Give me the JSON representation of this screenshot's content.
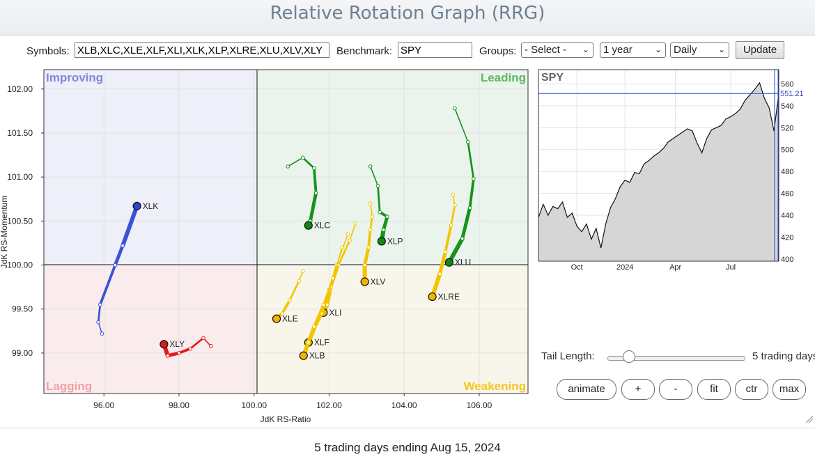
{
  "header": {
    "title": "Relative Rotation Graph (RRG)"
  },
  "controls": {
    "symbols_label": "Symbols:",
    "symbols_value": "XLB,XLC,XLE,XLF,XLI,XLK,XLP,XLRE,XLU,XLV,XLY",
    "benchmark_label": "Benchmark:",
    "benchmark_value": "SPY",
    "groups_label": "Groups:",
    "groups_value": "- Select -",
    "period_value": "1 year",
    "frequency_value": "Daily",
    "update_label": "Update"
  },
  "chart_data": [
    {
      "type": "scatter",
      "title": "",
      "xlabel": "JdK RS-Ratio",
      "ylabel": "JdK RS-Momentum",
      "xlim": [
        94.4,
        107.3
      ],
      "ylim": [
        98.54,
        102.22
      ],
      "x_ticks": [
        96,
        98,
        100,
        102,
        104,
        106
      ],
      "x_tick_labels": [
        "96.00",
        "98.00",
        "100.00",
        "102.00",
        "104.00",
        "106.00"
      ],
      "y_ticks": [
        99,
        99.5,
        100,
        100.5,
        101,
        101.5,
        102
      ],
      "y_tick_labels": [
        "99.00",
        "99.50",
        "100.00",
        "100.50",
        "101.00",
        "101.50",
        "102.00"
      ],
      "center": [
        100,
        100
      ],
      "quadrants": [
        {
          "name": "Improving",
          "color": "#7580d6",
          "fill": "#eeeff9"
        },
        {
          "name": "Leading",
          "color": "#4fae57",
          "fill": "#ebf4ec"
        },
        {
          "name": "Lagging",
          "color": "#f08a90",
          "fill": "#faeced"
        },
        {
          "name": "Weakening",
          "color": "#f0c419",
          "fill": "#f8f6eb"
        }
      ],
      "series": [
        {
          "name": "XLK",
          "color": "#3b54d4",
          "head": "#2f44c0",
          "points": [
            [
              95.95,
              99.22
            ],
            [
              95.85,
              99.35
            ],
            [
              95.9,
              99.55
            ],
            [
              96.3,
              100.0
            ],
            [
              96.5,
              100.22
            ],
            [
              96.88,
              100.67
            ]
          ]
        },
        {
          "name": "XLY",
          "color": "#e41a1c",
          "head": "#d7191c",
          "points": [
            [
              98.85,
              99.08
            ],
            [
              98.65,
              99.17
            ],
            [
              98.3,
              99.05
            ],
            [
              98.0,
              99.0
            ],
            [
              97.7,
              98.97
            ],
            [
              97.6,
              99.1
            ]
          ]
        },
        {
          "name": "XLC",
          "color": "#16931a",
          "head": "#118a15",
          "points": [
            [
              100.9,
              101.12
            ],
            [
              101.3,
              101.22
            ],
            [
              101.6,
              101.1
            ],
            [
              101.65,
              100.82
            ],
            [
              101.5,
              100.5
            ],
            [
              101.45,
              100.45
            ]
          ]
        },
        {
          "name": "XLP",
          "color": "#16931a",
          "head": "#118a15",
          "points": [
            [
              103.1,
              101.12
            ],
            [
              103.3,
              100.9
            ],
            [
              103.35,
              100.6
            ],
            [
              103.55,
              100.55
            ],
            [
              103.45,
              100.4
            ],
            [
              103.4,
              100.27
            ]
          ]
        },
        {
          "name": "XLU",
          "color": "#16931a",
          "head": "#118a15",
          "points": [
            [
              105.35,
              101.78
            ],
            [
              105.7,
              101.4
            ],
            [
              105.85,
              100.98
            ],
            [
              105.75,
              100.65
            ],
            [
              105.55,
              100.3
            ],
            [
              105.2,
              100.03
            ]
          ]
        },
        {
          "name": "XLRE",
          "color": "#f2c500",
          "head": "#f2b400",
          "points": [
            [
              105.3,
              100.8
            ],
            [
              105.35,
              100.68
            ],
            [
              105.25,
              100.45
            ],
            [
              105.1,
              100.15
            ],
            [
              104.95,
              99.9
            ],
            [
              104.75,
              99.64
            ]
          ]
        },
        {
          "name": "XLV",
          "color": "#f2c500",
          "head": "#f2b400",
          "points": [
            [
              103.1,
              100.7
            ],
            [
              103.15,
              100.55
            ],
            [
              103.1,
              100.4
            ],
            [
              103.05,
              100.2
            ],
            [
              102.95,
              100.0
            ],
            [
              102.95,
              99.81
            ]
          ]
        },
        {
          "name": "XLE",
          "color": "#f2c500",
          "head": "#f2b400",
          "points": [
            [
              101.3,
              99.93
            ],
            [
              101.2,
              99.82
            ],
            [
              100.95,
              99.6
            ],
            [
              100.75,
              99.45
            ],
            [
              100.6,
              99.39
            ]
          ]
        },
        {
          "name": "XLI",
          "color": "#f2c500",
          "head": "#f2b400",
          "points": [
            [
              102.7,
              100.47
            ],
            [
              102.55,
              100.28
            ],
            [
              102.25,
              100.0
            ],
            [
              102.05,
              99.75
            ],
            [
              101.95,
              99.55
            ],
            [
              101.85,
              99.46
            ]
          ]
        },
        {
          "name": "XLF",
          "color": "#f2c500",
          "head": "#f2b400",
          "points": [
            [
              102.5,
              100.35
            ],
            [
              102.2,
              100.0
            ],
            [
              102.0,
              99.72
            ],
            [
              101.8,
              99.45
            ],
            [
              101.6,
              99.28
            ],
            [
              101.45,
              99.12
            ]
          ]
        },
        {
          "name": "XLB",
          "color": "#f2c500",
          "head": "#f2b400",
          "points": [
            [
              102.35,
              100.2
            ],
            [
              102.1,
              99.85
            ],
            [
              101.85,
              99.55
            ],
            [
              101.6,
              99.3
            ],
            [
              101.45,
              99.12
            ],
            [
              101.32,
              98.97
            ]
          ]
        }
      ]
    },
    {
      "type": "area",
      "title": "SPY",
      "last_value_label": "551.21",
      "last_value": 551.21,
      "ylim": [
        398,
        573
      ],
      "y_ticks": [
        400,
        420,
        440,
        460,
        480,
        500,
        520,
        540,
        560
      ],
      "x_tick_labels": [
        "Oct",
        "2024",
        "Apr",
        "Jul"
      ],
      "x_tick_positions": [
        0.16,
        0.36,
        0.57,
        0.8
      ],
      "series": [
        {
          "name": "SPY",
          "color": "#111111",
          "x": [
            0,
            0.02,
            0.04,
            0.06,
            0.08,
            0.1,
            0.12,
            0.14,
            0.16,
            0.18,
            0.2,
            0.22,
            0.24,
            0.26,
            0.28,
            0.3,
            0.32,
            0.34,
            0.36,
            0.38,
            0.4,
            0.42,
            0.44,
            0.46,
            0.48,
            0.5,
            0.52,
            0.54,
            0.56,
            0.58,
            0.6,
            0.62,
            0.64,
            0.66,
            0.68,
            0.7,
            0.72,
            0.74,
            0.76,
            0.78,
            0.8,
            0.82,
            0.84,
            0.86,
            0.88,
            0.9,
            0.92,
            0.94,
            0.96,
            0.98,
            1.0
          ],
          "y": [
            438,
            450,
            440,
            448,
            446,
            452,
            438,
            442,
            430,
            425,
            432,
            418,
            428,
            410,
            432,
            447,
            455,
            466,
            472,
            470,
            479,
            478,
            487,
            490,
            494,
            497,
            501,
            507,
            510,
            513,
            516,
            519,
            517,
            506,
            497,
            510,
            518,
            520,
            522,
            528,
            530,
            533,
            537,
            545,
            550,
            555,
            561,
            547,
            538,
            517,
            551
          ]
        }
      ]
    }
  ],
  "quadrant_labels": {
    "improving": "Improving",
    "leading": "Leading",
    "lagging": "Lagging",
    "weakening": "Weakening"
  },
  "tail": {
    "label": "Tail Length:",
    "value_text": "5 trading days",
    "value": 5
  },
  "buttons": {
    "animate": "animate",
    "plus": "+",
    "minus": "-",
    "fit": "fit",
    "ctr": "ctr",
    "max": "max"
  },
  "footer": {
    "text": "5 trading days ending Aug 15, 2024"
  }
}
